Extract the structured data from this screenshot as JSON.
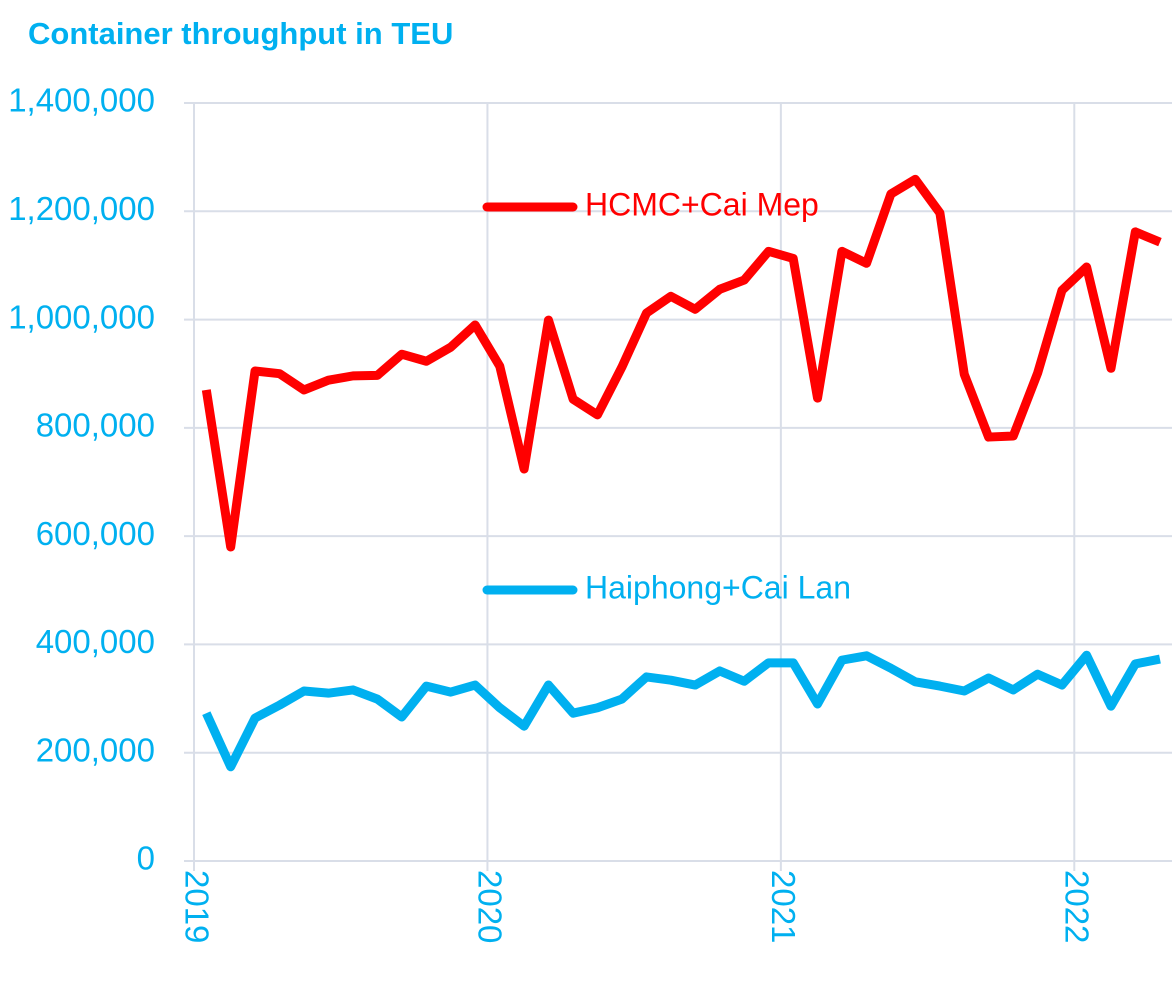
{
  "chart_data": {
    "type": "line",
    "title": "Container throughput in TEU",
    "x": [
      2019.042,
      2019.125,
      2019.208,
      2019.292,
      2019.375,
      2019.458,
      2019.542,
      2019.625,
      2019.708,
      2019.792,
      2019.875,
      2019.958,
      2020.042,
      2020.125,
      2020.208,
      2020.292,
      2020.375,
      2020.458,
      2020.542,
      2020.625,
      2020.708,
      2020.792,
      2020.875,
      2020.958,
      2021.042,
      2021.125,
      2021.208,
      2021.292,
      2021.375,
      2021.458,
      2021.542,
      2021.625,
      2021.708,
      2021.792,
      2021.875,
      2021.958,
      2022.042,
      2022.125,
      2022.208,
      2022.292
    ],
    "series": [
      {
        "name": "HCMC+Cai Mep",
        "color": "#ff0000",
        "values": [
          870000,
          580000,
          905000,
          900000,
          870000,
          888000,
          896000,
          897000,
          936000,
          923000,
          949000,
          990000,
          914000,
          724000,
          999000,
          853000,
          824000,
          912000,
          1012000,
          1043000,
          1019000,
          1056000,
          1073000,
          1126000,
          1113000,
          855000,
          1126000,
          1104000,
          1232000,
          1259000,
          1197000,
          899000,
          783000,
          785000,
          901000,
          1054000,
          1097000,
          910000,
          1162000,
          1143000
        ]
      },
      {
        "name": "Haiphong+Cai Lan",
        "color": "#00b0f0",
        "values": [
          273000,
          174000,
          264000,
          288000,
          314000,
          310000,
          316000,
          299000,
          266000,
          323000,
          312000,
          325000,
          283000,
          249000,
          325000,
          273000,
          283000,
          299000,
          340000,
          334000,
          325000,
          351000,
          332000,
          366000,
          366000,
          290000,
          371000,
          379000,
          356000,
          331000,
          323000,
          314000,
          338000,
          316000,
          345000,
          325000,
          380000,
          286000,
          364000,
          373000
        ]
      }
    ],
    "xlim": [
      2019,
      2022.333
    ],
    "xticks": [
      2019,
      2020,
      2021,
      2022
    ],
    "ylim": [
      0,
      1400000
    ],
    "yticks": [
      0,
      {
        "value": 200000,
        "label": "200,000"
      },
      {
        "value": 400000,
        "label": "400,000"
      },
      {
        "value": 600000,
        "label": "600,000"
      },
      {
        "value": 800000,
        "label": "800,000"
      },
      {
        "value": 1000000,
        "label": "1,000,000"
      },
      {
        "value": 1200000,
        "label": "1,200,000"
      },
      {
        "value": 1400000,
        "label": "1,400,000"
      }
    ],
    "grid": true,
    "tick_color": "#00b0f0"
  }
}
